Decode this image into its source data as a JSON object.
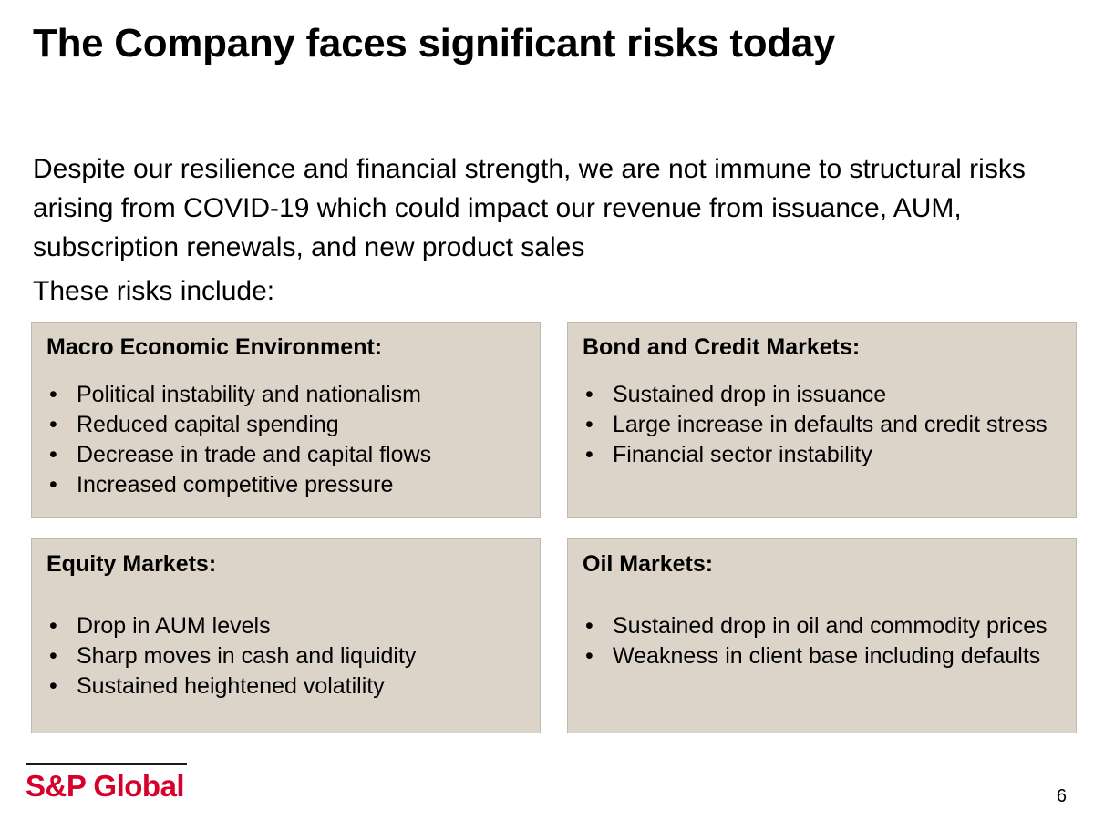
{
  "slide": {
    "title": "The Company faces significant risks today",
    "intro": "Despite our resilience and financial strength, we are not immune to structural risks arising from COVID-19 which could impact our revenue from issuance, AUM, subscription renewals, and new product sales",
    "lead_in": "These risks include:",
    "page_number": "6"
  },
  "boxes": {
    "macro": {
      "heading": "Macro Economic Environment:",
      "items": [
        "Political instability and nationalism",
        "Reduced capital spending",
        "Decrease in trade and capital flows",
        "Increased competitive pressure"
      ]
    },
    "bond": {
      "heading": "Bond and Credit Markets:",
      "items": [
        "Sustained drop in issuance",
        "Large increase in defaults and credit stress",
        "Financial sector instability"
      ]
    },
    "equity": {
      "heading": "Equity Markets:",
      "items": [
        "Drop in AUM levels",
        "Sharp moves in cash and liquidity",
        "Sustained heightened volatility"
      ]
    },
    "oil": {
      "heading": "Oil Markets:",
      "items": [
        "Sustained drop in oil and commodity prices",
        "Weakness in client base including defaults"
      ]
    }
  },
  "logo": {
    "text": "S&P Global"
  },
  "colors": {
    "box_background": "#dcd3c9",
    "box_border": "#c2b8ad",
    "brand_red": "#d6002a",
    "text": "#000000"
  }
}
